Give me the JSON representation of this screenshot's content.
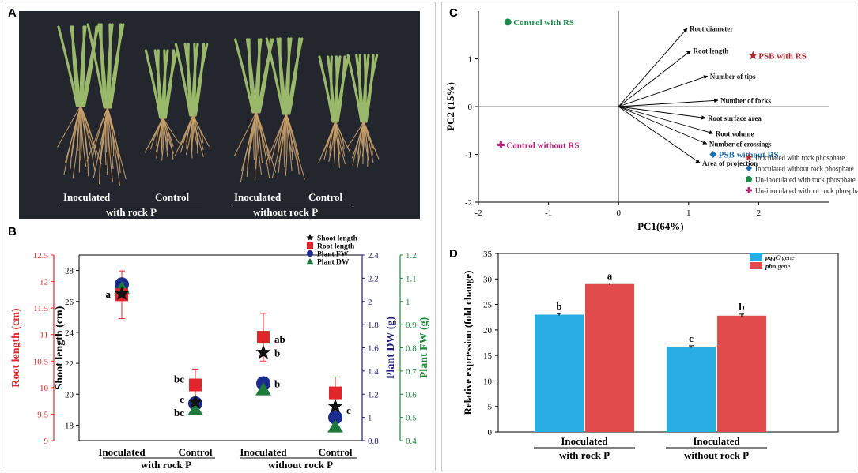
{
  "figure": {
    "panel_labels": {
      "a": "A",
      "b": "B",
      "c": "C",
      "d": "D"
    }
  },
  "panel_a": {
    "labels": {
      "inoculated_1": "Inoculated",
      "control_1": "Control",
      "group_1": "with rock P",
      "inoculated_2": "Inoculated",
      "control_2": "Control",
      "group_2": "without rock P"
    },
    "colors": {
      "background": "#23262d",
      "leaf": "#9ab86a",
      "root": "#c9a06a"
    }
  },
  "chart_data": [
    {
      "panel": "B",
      "type": "scatter",
      "categories": [
        "Inoculated",
        "Control",
        "Inoculated",
        "Control"
      ],
      "groups": [
        "with rock P",
        "without rock P"
      ],
      "axes": {
        "root_length": {
          "label": "Root length (cm)",
          "ylim": [
            9,
            12.5
          ],
          "ticks": [
            "9",
            "9.5",
            "10",
            "10.5",
            "11",
            "11.5",
            "12",
            "12.5"
          ],
          "color": "#e0262a"
        },
        "shoot_length": {
          "label": "Shoot length (cm)",
          "ylim": [
            17,
            29
          ],
          "ticks": [
            "18",
            "20",
            "22",
            "24",
            "26",
            "28"
          ],
          "color": "#000000"
        },
        "plant_dw": {
          "label": "Plant DW (g)",
          "ylim": [
            0.8,
            2.4
          ],
          "ticks": [
            "0.8",
            "1",
            "1.2",
            "1.4",
            "1.6",
            "1.8",
            "2",
            "2.2",
            "2.4"
          ],
          "color": "#1c1f7a"
        },
        "plant_fw": {
          "label": "Plant FW (g)",
          "ylim": [
            0.4,
            1.2
          ],
          "ticks": [
            "0.4",
            "0.5",
            "0.6",
            "0.7",
            "0.8",
            "0.9",
            "1",
            "1.1",
            "1.2"
          ],
          "color": "#1a8a3a"
        }
      },
      "series": [
        {
          "name": "Shoot length",
          "axis": "shoot_length",
          "marker": "star",
          "color": "#111111",
          "values": [
            26.5,
            19.5,
            22.7,
            19.2
          ],
          "errors": [
            0,
            0,
            0,
            0
          ]
        },
        {
          "name": "Root length",
          "axis": "root_length",
          "marker": "square",
          "color": "#e0262a",
          "values": [
            11.75,
            10.05,
            10.95,
            9.9
          ],
          "errors": [
            0.45,
            0.3,
            0.45,
            0.3
          ]
        },
        {
          "name": "Plant FW",
          "axis": "shoot_length",
          "marker": "circle",
          "color": "#1c2c8c",
          "values": [
            27.1,
            19.4,
            20.7,
            18.5
          ],
          "errors": [
            0.25,
            0.15,
            0.2,
            0.15
          ]
        },
        {
          "name": "Plant DW",
          "axis": "shoot_length",
          "marker": "triangle",
          "color": "#1e7a3c",
          "values": [
            26.85,
            19.0,
            20.3,
            17.9
          ],
          "errors": [
            0,
            0,
            0,
            0
          ]
        }
      ],
      "annotations": [
        {
          "category_index": 0,
          "text": "a",
          "axis": "shoot_length",
          "value": 26.5,
          "side": "left"
        },
        {
          "category_index": 1,
          "text": "bc",
          "axis": "shoot_length",
          "value": 21.0,
          "side": "left"
        },
        {
          "category_index": 1,
          "text": "c",
          "axis": "shoot_length",
          "value": 19.7,
          "side": "left"
        },
        {
          "category_index": 1,
          "text": "bc",
          "axis": "shoot_length",
          "value": 18.85,
          "side": "left"
        },
        {
          "category_index": 2,
          "text": "ab",
          "axis": "shoot_length",
          "value": 23.6,
          "side": "right"
        },
        {
          "category_index": 2,
          "text": "b",
          "axis": "shoot_length",
          "value": 22.7,
          "side": "right"
        },
        {
          "category_index": 2,
          "text": "b",
          "axis": "shoot_length",
          "value": 20.7,
          "side": "right"
        },
        {
          "category_index": 3,
          "text": "c",
          "axis": "shoot_length",
          "value": 19.0,
          "side": "right"
        }
      ],
      "legend": [
        "Shoot length",
        "Root length",
        "Plant FW",
        "Plant DW"
      ],
      "legend_position": "top-right"
    },
    {
      "panel": "C",
      "type": "scatter",
      "xlabel": "PC1(64%)",
      "ylabel": "PC2 (15%)",
      "xlim": [
        -2,
        3
      ],
      "ylim": [
        -2,
        2
      ],
      "xticks": [
        "-2",
        "-1",
        "0",
        "1",
        "2"
      ],
      "yticks": [
        "-2",
        "-1",
        "0",
        "1"
      ],
      "vectors": [
        {
          "label": "Root diameter",
          "x": 0.98,
          "y": 1.64
        },
        {
          "label": "Root length",
          "x": 1.03,
          "y": 1.17
        },
        {
          "label": "Number of tips",
          "x": 1.27,
          "y": 0.64
        },
        {
          "label": "Number of forks",
          "x": 1.42,
          "y": 0.13
        },
        {
          "label": "Root surface area",
          "x": 1.24,
          "y": -0.24
        },
        {
          "label": "Root volume",
          "x": 1.35,
          "y": -0.56
        },
        {
          "label": "Number of crossings",
          "x": 1.26,
          "y": -0.78
        },
        {
          "label": "Area of projection",
          "x": 1.16,
          "y": -1.18
        }
      ],
      "points": [
        {
          "label": "Control with RS",
          "x": -1.58,
          "y": 1.77,
          "marker": "circle",
          "color": "#1a8a4a"
        },
        {
          "label": "PSB with RS",
          "x": 1.92,
          "y": 1.07,
          "marker": "star",
          "color": "#b8272d"
        },
        {
          "label": "Control without RS",
          "x": -1.68,
          "y": -0.8,
          "marker": "cross",
          "color": "#b5257a"
        },
        {
          "label": "PSB without RS",
          "x": 1.35,
          "y": -1.0,
          "marker": "diamond",
          "color": "#1f6fb2"
        }
      ],
      "legend": [
        {
          "label": "Inoculated with rock phosphate",
          "marker": "star",
          "color": "#b8272d"
        },
        {
          "label": "Inoculated without rock phosphate",
          "marker": "diamond",
          "color": "#1f6fb2"
        },
        {
          "label": "Un-inoculated with rock phosphate",
          "marker": "circle",
          "color": "#1a8a4a"
        },
        {
          "label": "Un-inoculated without rock phosphate",
          "marker": "cross",
          "color": "#b5257a"
        }
      ],
      "legend_position": "bottom-right"
    },
    {
      "panel": "D",
      "type": "bar",
      "categories": [
        "Inoculated",
        "Inoculated"
      ],
      "group_labels": [
        "with rock P",
        "without rock P"
      ],
      "ylabel": "Relative expression (fold change)",
      "ylim": [
        0,
        35
      ],
      "yticks": [
        "0",
        "5",
        "10",
        "15",
        "20",
        "25",
        "30",
        "35"
      ],
      "series": [
        {
          "name_italic": "pqqC",
          "name_suffix": " gene",
          "color": "#29aee4",
          "values": [
            23.0,
            16.7
          ],
          "errors": [
            0.2,
            0.2
          ],
          "letters": [
            "b",
            "c"
          ]
        },
        {
          "name_italic": "pho",
          "name_suffix": " gene",
          "color": "#e24b4b",
          "values": [
            29.0,
            22.8
          ],
          "errors": [
            0.2,
            0.3
          ],
          "letters": [
            "a",
            "b"
          ]
        }
      ],
      "legend_position": "top-left"
    }
  ]
}
